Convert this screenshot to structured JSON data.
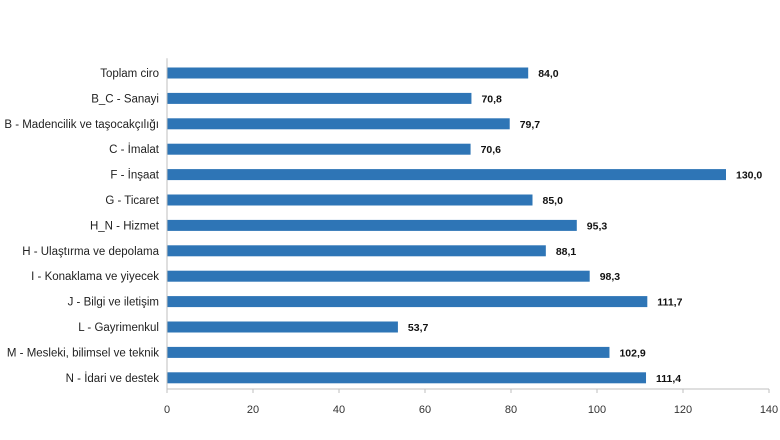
{
  "chart_data": {
    "type": "bar",
    "orientation": "horizontal",
    "categories": [
      "Toplam ciro",
      "B_C - Sanayi",
      "B - Madencilik ve taşocakçılığı",
      "C - İmalat",
      "F - İnşaat",
      "G - Ticaret",
      "H_N - Hizmet",
      "H - Ulaştırma ve depolama",
      "I - Konaklama ve yiyecek",
      "J - Bilgi ve iletişim",
      "L - Gayrimenkul",
      "M - Mesleki, bilimsel ve teknik",
      "N - İdari ve destek"
    ],
    "values": [
      84.0,
      70.8,
      79.7,
      70.6,
      130.0,
      85.0,
      95.3,
      88.1,
      98.3,
      111.7,
      53.7,
      102.9,
      111.4
    ],
    "value_labels": [
      "84,0",
      "70,8",
      "79,7",
      "70,6",
      "130,0",
      "85,0",
      "95,3",
      "88,1",
      "98,3",
      "111,7",
      "53,7",
      "102,9",
      "111,4"
    ],
    "xlim": [
      0,
      140
    ],
    "xticks": [
      0,
      20,
      40,
      60,
      80,
      100,
      120,
      140
    ],
    "title": "",
    "xlabel": "",
    "ylabel": "",
    "grid": false,
    "legend": "none",
    "bar_color": "#2e75b6"
  }
}
